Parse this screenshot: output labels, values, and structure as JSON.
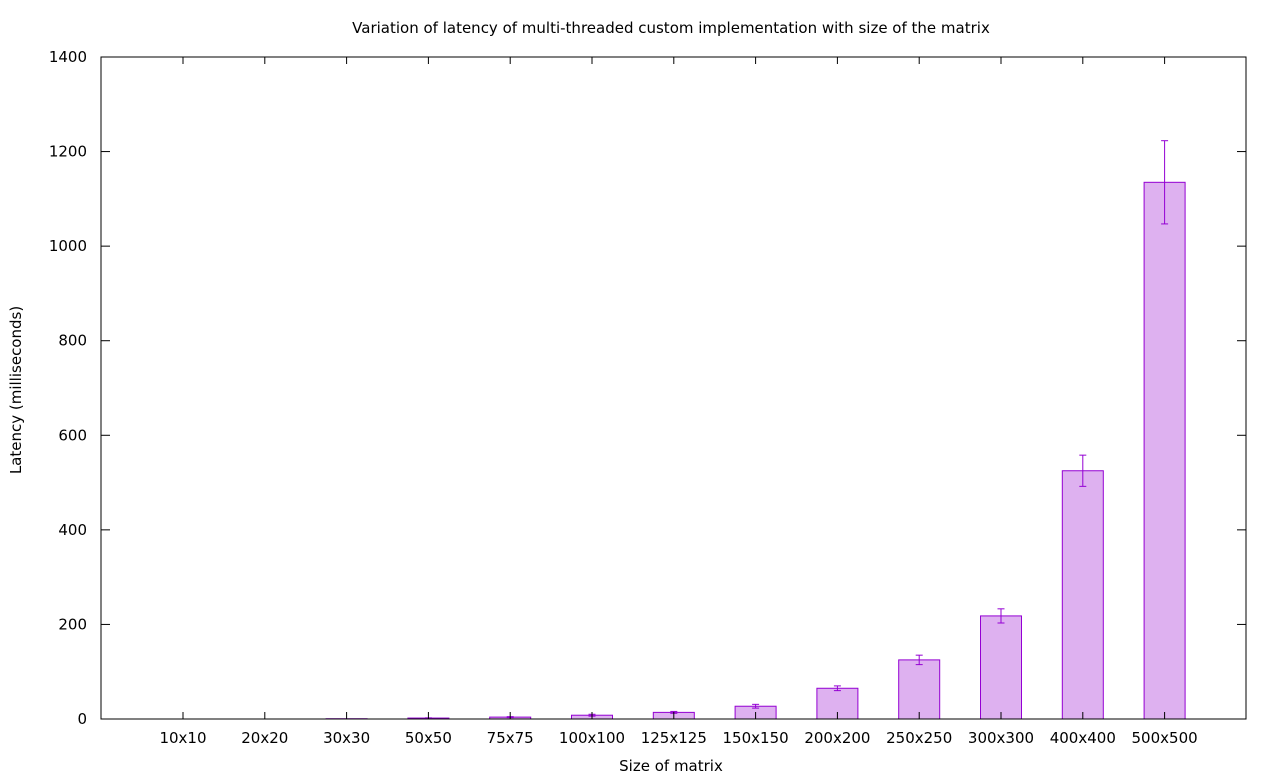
{
  "chart_data": {
    "type": "bar",
    "title": "Variation of latency of multi-threaded custom implementation with size of the matrix",
    "xlabel": "Size of matrix",
    "ylabel": "Latency (milliseconds)",
    "ylim": [
      0,
      1400
    ],
    "yticks": [
      "0",
      "200",
      "400",
      "600",
      "800",
      "1000",
      "1200",
      "1400"
    ],
    "categories": [
      "10x10",
      "20x20",
      "30x30",
      "50x50",
      "75x75",
      "100x100",
      "125x125",
      "150x150",
      "200x200",
      "250x250",
      "300x300",
      "400x400",
      "500x500"
    ],
    "values": [
      0.1,
      0.3,
      0.6,
      2,
      4,
      8,
      14,
      27,
      65,
      125,
      218,
      525,
      1135
    ],
    "errors": [
      0,
      0,
      0,
      0.5,
      1,
      2,
      2,
      4,
      5,
      10,
      15,
      33,
      88
    ],
    "grid": false,
    "legend": "none",
    "colors": {
      "bar_fill": "#deb1f0",
      "bar_stroke": "#9400d3",
      "axis": "#000000"
    }
  }
}
